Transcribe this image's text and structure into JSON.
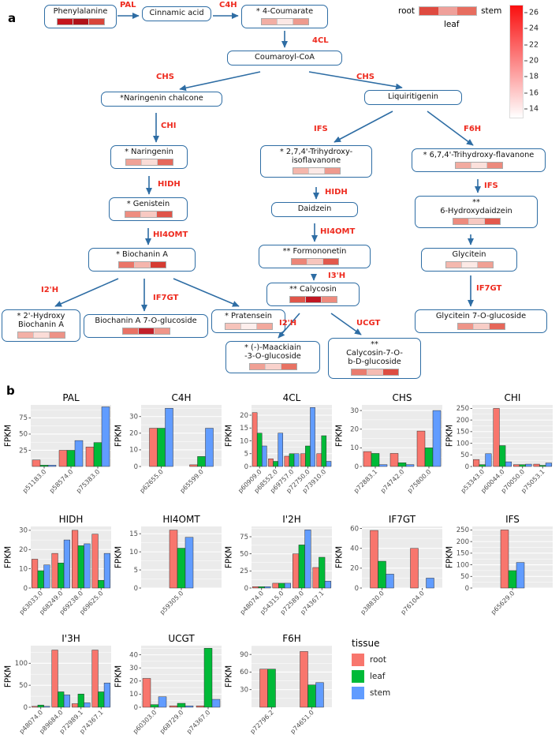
{
  "figure": {
    "panel_a": "a",
    "panel_b": "b"
  },
  "legend_heat": {
    "root_label": "root",
    "stem_label": "stem",
    "leaf_label": "leaf",
    "sample": [
      "#df4a40",
      "#efa09a",
      "#e76d5f"
    ],
    "scale_top": "#fa0f0f",
    "scale_bottom": "#ffffff",
    "ticks": [
      26,
      24,
      22,
      20,
      18,
      16,
      14
    ]
  },
  "pathway": {
    "nodes": {
      "phenylalanine": {
        "label": "Phenylalanine",
        "heat": [
          "#c5161d",
          "#b01219",
          "#d8453a"
        ]
      },
      "cinnamic": {
        "label": "Cinnamic acid"
      },
      "coumarate": {
        "label": "* 4-Coumarate",
        "heat": [
          "#f2aea3",
          "#fce8e5",
          "#ee9a8d"
        ]
      },
      "coumaroyl": {
        "label": "Coumaroyl-CoA"
      },
      "nchalcone": {
        "label": "*Naringenin chalcone"
      },
      "liquiritigenin": {
        "label": "Liquiritigenin"
      },
      "naringenin": {
        "label": "* Naringenin",
        "heat": [
          "#f0a296",
          "#fadcd7",
          "#e5685b"
        ]
      },
      "trihydroxyiso": {
        "label": "* 2,7,4'-Trihydroxy-\nisoflavanone",
        "heat": [
          "#f4b6ab",
          "#fce9e6",
          "#ef9a8e"
        ]
      },
      "trihydroxyflav": {
        "label": "* 6,7,4'-Trihydroxy-flavanone",
        "heat": [
          "#f2aba0",
          "#fbe0db",
          "#ec8a7d"
        ]
      },
      "genistein": {
        "label": "* Genistein",
        "heat": [
          "#ee8d80",
          "#f8c9c2",
          "#e05449"
        ]
      },
      "daidzein": {
        "label": "Daidzein"
      },
      "hydroxydaidzein": {
        "label": "**\n6-Hydroxydaidzein",
        "heat": [
          "#ed8b7e",
          "#f7c9c2",
          "#e3594d"
        ]
      },
      "biochanina": {
        "label": "* Biochanin A",
        "heat": [
          "#ea7568",
          "#f5b5ac",
          "#d63c32"
        ]
      },
      "formononetin": {
        "label": "** Formononetin",
        "heat": [
          "#ec8577",
          "#f7c5bd",
          "#e2584c"
        ]
      },
      "glycitein": {
        "label": "Glycitein",
        "heat": [
          "#f4b8ae",
          "#fce9e5",
          "#f0a094"
        ]
      },
      "calycosin": {
        "label": "** Calycosin",
        "heat": [
          "#e0564a",
          "#c01622",
          "#ee8b7e"
        ]
      },
      "hydroxybiochanin": {
        "label": "* 2'-Hydroxy\nBiochanin A",
        "heat": [
          "#f3b0a6",
          "#fbdcd7",
          "#ed9286"
        ]
      },
      "biochanin7o": {
        "label": "Biochanin A 7-O-glucoside",
        "heat": [
          "#e97265",
          "#c2202a",
          "#ef9589"
        ]
      },
      "pratensein": {
        "label": "* Pratensein",
        "heat": [
          "#f6c3ba",
          "#fdeeec",
          "#f2a89d"
        ]
      },
      "glycitein7o": {
        "label": "Glycitein 7-O-glucoside",
        "heat": [
          "#ee9488",
          "#f8cdc6",
          "#e6675a"
        ]
      },
      "maackiain": {
        "label": "* (-)-Maackiain\n-3-O-glucoside",
        "heat": [
          "#f0a094",
          "#f9d2cc",
          "#e87263"
        ]
      },
      "calycosin7o": {
        "label": "**\nCalycosin-7-O-\nb-D-glucoside",
        "heat": [
          "#ea7c6e",
          "#f5bcb3",
          "#dd4d41"
        ]
      }
    },
    "enzymes": {
      "pal": "PAL",
      "c4h": "C4H",
      "4cl": "4CL",
      "chs_l": "CHS",
      "chs_r": "CHS",
      "chi": "CHI",
      "ifs_l": "IFS",
      "f6h": "F6H",
      "hidh_l": "HIDH",
      "hidh_m": "HIDH",
      "ifs_r": "IFS",
      "hi4omt_l": "HI4OMT",
      "hi4omt_m": "HI4OMT",
      "i2h_l": "I2'H",
      "if7gt_m": "IF7GT",
      "i3h": "I3'H",
      "i2h_m": "I2'H",
      "ucgt": "UCGT",
      "if7gt_r": "IF7GT"
    }
  },
  "tissue_legend": {
    "title": "tissue",
    "items": [
      {
        "label": "root",
        "color": "#F8766D"
      },
      {
        "label": "leaf",
        "color": "#00BA38"
      },
      {
        "label": "stem",
        "color": "#619CFF"
      }
    ]
  },
  "chart_data": {
    "type": "bar",
    "ylabel": "FPKM",
    "series_order": [
      "root",
      "leaf",
      "stem"
    ],
    "colors": {
      "root": "#F8766D",
      "leaf": "#00BA38",
      "stem": "#619CFF"
    },
    "panel_bg": "#EBEBEB",
    "panels": [
      {
        "title": "PAL",
        "row": 1,
        "categories": [
          "p51183.0",
          "p58574.0",
          "p75383.0"
        ],
        "yticks": [
          25,
          50,
          75
        ],
        "ymax": 95,
        "series": {
          "root": [
            10,
            25,
            30
          ],
          "leaf": [
            2,
            25,
            37
          ],
          "stem": [
            2,
            40,
            92
          ]
        }
      },
      {
        "title": "C4H",
        "row": 1,
        "categories": [
          "p62655.0",
          "p65599.0"
        ],
        "yticks": [
          0,
          10,
          20,
          30
        ],
        "ymax": 37,
        "series": {
          "root": [
            23,
            1
          ],
          "leaf": [
            23,
            6
          ],
          "stem": [
            35,
            23
          ]
        }
      },
      {
        "title": "4CL",
        "row": 1,
        "categories": [
          "p60909.0",
          "p68552.0",
          "p69757.0",
          "p72750.0",
          "p73910.0"
        ],
        "yticks": [
          0,
          5,
          10,
          15,
          20
        ],
        "ymax": 24,
        "series": {
          "root": [
            21,
            3,
            4,
            5,
            5
          ],
          "leaf": [
            13,
            2,
            5,
            8,
            12
          ],
          "stem": [
            8,
            13,
            5,
            23,
            2
          ]
        }
      },
      {
        "title": "CHS",
        "row": 1,
        "categories": [
          "p72883.1",
          "p74742.0",
          "p75800.0"
        ],
        "yticks": [
          0,
          10,
          20,
          30
        ],
        "ymax": 33,
        "series": {
          "root": [
            8,
            7,
            19
          ],
          "leaf": [
            7,
            2,
            10
          ],
          "stem": [
            1,
            1,
            30
          ]
        }
      },
      {
        "title": "CHI",
        "row": 1,
        "categories": [
          "p53343.0",
          "p60044.0",
          "p70050.0",
          "p75053.1"
        ],
        "yticks": [
          0,
          50,
          100,
          150,
          200,
          250
        ],
        "ymax": 265,
        "series": {
          "root": [
            30,
            250,
            8,
            10
          ],
          "leaf": [
            8,
            90,
            8,
            5
          ],
          "stem": [
            55,
            20,
            10,
            15
          ]
        }
      },
      {
        "title": "HIDH",
        "row": 2,
        "categories": [
          "p63033.0",
          "p68249.0",
          "p69238.0",
          "p69625.0"
        ],
        "yticks": [
          0,
          10,
          20,
          30
        ],
        "ymax": 32,
        "series": {
          "root": [
            15,
            18,
            30,
            28
          ],
          "leaf": [
            9,
            13,
            22,
            4
          ],
          "stem": [
            12,
            25,
            23,
            18
          ]
        }
      },
      {
        "title": "HI4OMT",
        "row": 2,
        "categories": [
          "p59305.0"
        ],
        "yticks": [
          0,
          5,
          10,
          15
        ],
        "ymax": 17,
        "series": {
          "root": [
            16
          ],
          "leaf": [
            11
          ],
          "stem": [
            14
          ]
        }
      },
      {
        "title": "I'2H",
        "row": 2,
        "categories": [
          "p48074.0",
          "p54315.0",
          "p72589.0",
          "p74367.1"
        ],
        "yticks": [
          0,
          25,
          50,
          75
        ],
        "ymax": 90,
        "series": {
          "root": [
            2,
            7,
            50,
            30
          ],
          "leaf": [
            2,
            7,
            63,
            45
          ],
          "stem": [
            2,
            7,
            85,
            10
          ]
        }
      },
      {
        "title": "IF7GT",
        "row": 2,
        "categories": [
          "p38830.0",
          "p76104.0"
        ],
        "yticks": [
          0,
          20,
          40,
          60
        ],
        "ymax": 62,
        "series": {
          "root": [
            58,
            40
          ],
          "leaf": [
            27,
            0
          ],
          "stem": [
            14,
            10
          ]
        }
      },
      {
        "title": "IFS",
        "row": 2,
        "categories": [
          "p65629.0"
        ],
        "yticks": [
          0,
          50,
          100,
          150,
          200,
          250
        ],
        "ymax": 265,
        "series": {
          "root": [
            250
          ],
          "leaf": [
            75
          ],
          "stem": [
            110
          ]
        }
      },
      {
        "title": "I'3H",
        "row": 3,
        "categories": [
          "p48074.0",
          "p89684.0",
          "p72989.1",
          "p74367.1"
        ],
        "yticks": [
          0,
          50,
          100
        ],
        "ymax": 140,
        "series": {
          "root": [
            2,
            130,
            8,
            130
          ],
          "leaf": [
            5,
            35,
            30,
            35
          ],
          "stem": [
            2,
            28,
            10,
            55
          ]
        }
      },
      {
        "title": "UCGT",
        "row": 3,
        "categories": [
          "p60303.0",
          "p68729.0",
          "p74367.0"
        ],
        "yticks": [
          0,
          10,
          20,
          30,
          40
        ],
        "ymax": 47,
        "series": {
          "root": [
            22,
            1,
            1
          ],
          "leaf": [
            2,
            3,
            45
          ],
          "stem": [
            8,
            1,
            6
          ]
        }
      },
      {
        "title": "F6H",
        "row": 3,
        "categories": [
          "p72796.2",
          "p74651.0"
        ],
        "yticks": [
          30,
          60,
          90
        ],
        "ymax": 105,
        "series": {
          "root": [
            65,
            95
          ],
          "leaf": [
            65,
            38
          ],
          "stem": [
            0,
            42
          ]
        }
      }
    ]
  }
}
